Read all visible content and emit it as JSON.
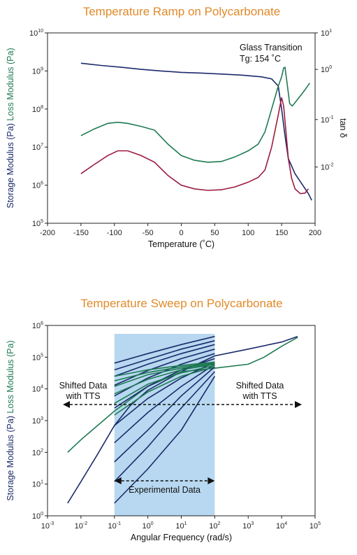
{
  "chart_data": [
    {
      "type": "line",
      "title": "Temperature Ramp on Polycarbonate",
      "xlabel": "Temperature (˚C)",
      "ylabel_parts": [
        {
          "text": "Storage Modulus (Pa)",
          "color": "#1B2A6B"
        },
        {
          "text": "Loss Modulus (Pa)",
          "color": "#1E7A52"
        }
      ],
      "y2label": "tan δ",
      "y2label_color": "#9B1B3F",
      "xlim": [
        -200,
        200
      ],
      "xticks": [
        -200,
        -150,
        -100,
        -50,
        0,
        50,
        100,
        150,
        200
      ],
      "yscale": "log",
      "ylim": [
        100000,
        10000000000
      ],
      "ytick_exponents": [
        5,
        6,
        7,
        8,
        9,
        10
      ],
      "y2scale": "log",
      "y2ticks": [
        {
          "exp": 1,
          "y_data": 10000000000
        },
        {
          "exp": 0,
          "y_data": 1100000000
        },
        {
          "exp": -1,
          "y_data": 53000000
        },
        {
          "exp": -2,
          "y_data": 3000000
        }
      ],
      "annotation": [
        "Glass Transition",
        "Tg: 154 ˚C"
      ],
      "series": [
        {
          "color": "#1B2A6B",
          "points": [
            [
              -150,
              1600000000
            ],
            [
              -120,
              1400000000
            ],
            [
              -90,
              1250000000
            ],
            [
              -60,
              1100000000
            ],
            [
              -30,
              1000000000
            ],
            [
              0,
              920000000
            ],
            [
              30,
              880000000
            ],
            [
              60,
              830000000
            ],
            [
              90,
              780000000
            ],
            [
              120,
              700000000
            ],
            [
              135,
              620000000
            ],
            [
              145,
              400000000
            ],
            [
              150,
              100000000
            ],
            [
              155,
              20000000
            ],
            [
              160,
              5000000
            ],
            [
              170,
              2000000
            ],
            [
              180,
              1100000
            ],
            [
              190,
              600000
            ],
            [
              195,
              400000
            ]
          ]
        },
        {
          "color": "#1E7A52",
          "points": [
            [
              -150,
              20000000
            ],
            [
              -130,
              30000000
            ],
            [
              -110,
              42000000
            ],
            [
              -95,
              45000000
            ],
            [
              -80,
              42000000
            ],
            [
              -60,
              35000000
            ],
            [
              -40,
              28000000
            ],
            [
              -20,
              12000000
            ],
            [
              0,
              6000000
            ],
            [
              20,
              4500000
            ],
            [
              40,
              4000000
            ],
            [
              60,
              4200000
            ],
            [
              80,
              5500000
            ],
            [
              100,
              8000000
            ],
            [
              115,
              12000000
            ],
            [
              125,
              25000000
            ],
            [
              135,
              100000000
            ],
            [
              145,
              400000000
            ],
            [
              150,
              700000000
            ],
            [
              153,
              1200000000
            ],
            [
              155,
              1250000000
            ],
            [
              158,
              500000000
            ],
            [
              162,
              140000000
            ],
            [
              166,
              120000000
            ],
            [
              175,
              190000000
            ],
            [
              185,
              320000000
            ],
            [
              192,
              480000000
            ]
          ]
        },
        {
          "color": "#9B1B3F",
          "points": [
            [
              -150,
              2000000
            ],
            [
              -130,
              3500000
            ],
            [
              -110,
              6000000
            ],
            [
              -95,
              8000000
            ],
            [
              -80,
              8000000
            ],
            [
              -60,
              6000000
            ],
            [
              -40,
              4000000
            ],
            [
              -20,
              1800000
            ],
            [
              0,
              1000000
            ],
            [
              20,
              800000
            ],
            [
              40,
              730000
            ],
            [
              60,
              760000
            ],
            [
              80,
              900000
            ],
            [
              100,
              1200000
            ],
            [
              115,
              1600000
            ],
            [
              125,
              2500000
            ],
            [
              135,
              10000000
            ],
            [
              145,
              70000000
            ],
            [
              150,
              200000000
            ],
            [
              153,
              120000000
            ],
            [
              157,
              20000000
            ],
            [
              160,
              5000000
            ],
            [
              165,
              1500000
            ],
            [
              170,
              800000
            ],
            [
              178,
              600000
            ],
            [
              185,
              620000
            ],
            [
              190,
              800000
            ]
          ]
        }
      ]
    },
    {
      "type": "line",
      "title": "Temperature Sweep on Polycarbonate",
      "xlabel": "Angular Frequency (rad/s)",
      "ylabel_parts": [
        {
          "text": "Storage Modulus (Pa)",
          "color": "#1B2A6B"
        },
        {
          "text": "Loss Modulus (Pa)",
          "color": "#1E7A52"
        }
      ],
      "xscale": "log",
      "xlim": [
        0.001,
        100000
      ],
      "xtick_exponents": [
        -3,
        -2,
        -1,
        0,
        1,
        2,
        3,
        4,
        5
      ],
      "yscale": "log",
      "ylim": [
        1,
        1000000
      ],
      "ytick_exponents": [
        0,
        1,
        2,
        3,
        4,
        5,
        6
      ],
      "shaded_region": {
        "x": [
          0.1,
          100
        ],
        "color": "#B7D8F0"
      },
      "annotations": {
        "left": [
          "Shifted Data",
          "with TTS"
        ],
        "right": [
          "Shifted Data",
          "with TTS"
        ],
        "experimental": "Experimental Data"
      },
      "series": [
        {
          "color": "#1B2A6B",
          "points": [
            [
              0.004,
              2.5
            ],
            [
              0.01,
              12
            ],
            [
              0.03,
              80
            ],
            [
              0.1,
              700
            ],
            [
              0.3,
              3000
            ],
            [
              1,
              9000
            ],
            [
              10,
              35000
            ],
            [
              100,
              110000
            ],
            [
              1000,
              180000
            ],
            [
              10000,
              300000
            ],
            [
              30000,
              450000
            ]
          ]
        },
        {
          "color": "#1E7A52",
          "points": [
            [
              0.004,
              100
            ],
            [
              0.01,
              250
            ],
            [
              0.1,
              2000
            ],
            [
              1,
              12000
            ],
            [
              10,
              35000
            ],
            [
              100,
              45000
            ],
            [
              1000,
              60000
            ],
            [
              3000,
              100000
            ],
            [
              10000,
              220000
            ],
            [
              30000,
              420000
            ]
          ]
        },
        {
          "color": "#1B2A6B",
          "points": [
            [
              0.1,
              2.5
            ],
            [
              1,
              30
            ],
            [
              10,
              500
            ],
            [
              100,
              25000
            ]
          ]
        },
        {
          "color": "#1B2A6B",
          "points": [
            [
              0.1,
              12
            ],
            [
              1,
              150
            ],
            [
              10,
              2500
            ],
            [
              100,
              35000
            ]
          ]
        },
        {
          "color": "#1B2A6B",
          "points": [
            [
              0.1,
              50
            ],
            [
              1,
              500
            ],
            [
              10,
              6000
            ],
            [
              100,
              50000
            ]
          ]
        },
        {
          "color": "#1B2A6B",
          "points": [
            [
              0.1,
              200
            ],
            [
              1,
              1800
            ],
            [
              10,
              12000
            ],
            [
              100,
              60000
            ]
          ]
        },
        {
          "color": "#1B2A6B",
          "points": [
            [
              0.1,
              700
            ],
            [
              1,
              5000
            ],
            [
              10,
              22000
            ],
            [
              100,
              70000
            ]
          ]
        },
        {
          "color": "#1B2A6B",
          "points": [
            [
              0.1,
              2500
            ],
            [
              1,
              12000
            ],
            [
              10,
              40000
            ],
            [
              100,
              90000
            ]
          ]
        },
        {
          "color": "#1B2A6B",
          "points": [
            [
              0.1,
              6000
            ],
            [
              1,
              22000
            ],
            [
              10,
              60000
            ],
            [
              100,
              130000
            ]
          ]
        },
        {
          "color": "#1B2A6B",
          "points": [
            [
              0.1,
              13000
            ],
            [
              1,
              38000
            ],
            [
              10,
              90000
            ],
            [
              100,
              180000
            ]
          ]
        },
        {
          "color": "#1B2A6B",
          "points": [
            [
              0.1,
              25000
            ],
            [
              1,
              60000
            ],
            [
              10,
              130000
            ],
            [
              100,
              250000
            ]
          ]
        },
        {
          "color": "#1B2A6B",
          "points": [
            [
              0.1,
              40000
            ],
            [
              1,
              85000
            ],
            [
              10,
              180000
            ],
            [
              100,
              330000
            ]
          ]
        },
        {
          "color": "#1B2A6B",
          "points": [
            [
              0.1,
              65000
            ],
            [
              1,
              130000
            ],
            [
              10,
              250000
            ],
            [
              100,
              450000
            ]
          ]
        },
        {
          "color": "#1E7A52",
          "points": [
            [
              0.1,
              1500
            ],
            [
              1,
              8000
            ],
            [
              10,
              25000
            ],
            [
              100,
              50000
            ]
          ]
        },
        {
          "color": "#1E7A52",
          "points": [
            [
              0.1,
              3500
            ],
            [
              1,
              14000
            ],
            [
              10,
              32000
            ],
            [
              100,
              55000
            ]
          ]
        },
        {
          "color": "#1E7A52",
          "points": [
            [
              0.1,
              7000
            ],
            [
              1,
              20000
            ],
            [
              10,
              40000
            ],
            [
              100,
              60000
            ]
          ]
        },
        {
          "color": "#1E7A52",
          "points": [
            [
              0.1,
              12000
            ],
            [
              1,
              28000
            ],
            [
              10,
              45000
            ],
            [
              100,
              62000
            ]
          ]
        },
        {
          "color": "#1E7A52",
          "points": [
            [
              0.1,
              18000
            ],
            [
              1,
              33000
            ],
            [
              10,
              50000
            ],
            [
              100,
              65000
            ]
          ]
        },
        {
          "color": "#1E7A52",
          "points": [
            [
              0.1,
              25000
            ],
            [
              1,
              40000
            ],
            [
              10,
              55000
            ],
            [
              100,
              70000
            ]
          ]
        }
      ]
    }
  ]
}
